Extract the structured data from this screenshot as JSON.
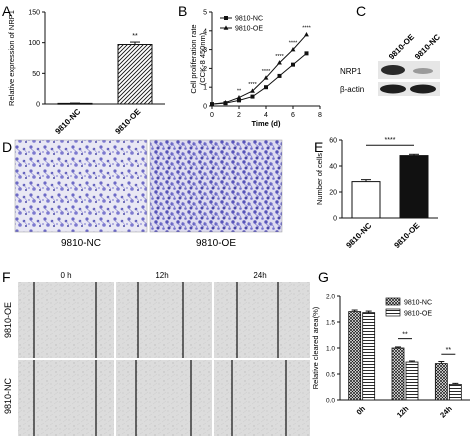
{
  "panel_labels": [
    "A",
    "B",
    "C",
    "D",
    "E",
    "F",
    "G"
  ],
  "chart_data": [
    {
      "panel": "A",
      "type": "bar",
      "ylabel": "Relative expression of NRP1",
      "ylim": [
        0,
        150
      ],
      "yticks": [
        0,
        50,
        100,
        150
      ],
      "categories": [
        "9810-NC",
        "9810-OE"
      ],
      "values": [
        1,
        97
      ],
      "errors": [
        0.5,
        4
      ],
      "significance": [
        {
          "between": [
            0,
            1
          ],
          "label": "**"
        }
      ]
    },
    {
      "panel": "B",
      "type": "line",
      "xlabel": "Time (d)",
      "ylabel": "Cell proliferation rate\n(CCK-8 450nm)",
      "xlim": [
        0,
        8
      ],
      "xticks": [
        0,
        2,
        4,
        6,
        8
      ],
      "ylim": [
        0,
        5
      ],
      "yticks": [
        0,
        1,
        2,
        3,
        4,
        5
      ],
      "legend_position": "top-left",
      "x": [
        0,
        1,
        2,
        3,
        4,
        5,
        6,
        7
      ],
      "series": [
        {
          "name": "9810-NC",
          "values": [
            0.1,
            0.15,
            0.3,
            0.5,
            1.0,
            1.6,
            2.2,
            2.8
          ],
          "marker": "square"
        },
        {
          "name": "9810-OE",
          "values": [
            0.1,
            0.18,
            0.45,
            0.8,
            1.5,
            2.3,
            3.0,
            3.8
          ],
          "marker": "triangle"
        }
      ],
      "annotations": [
        {
          "x": 2,
          "label": "**"
        },
        {
          "x": 3,
          "label": "****"
        },
        {
          "x": 4,
          "label": "****"
        },
        {
          "x": 5,
          "label": "****"
        },
        {
          "x": 6,
          "label": "****"
        },
        {
          "x": 7,
          "label": "****"
        }
      ]
    },
    {
      "panel": "E",
      "type": "bar",
      "ylabel": "Number of cells",
      "ylim": [
        0,
        60
      ],
      "yticks": [
        0,
        20,
        40,
        60
      ],
      "categories": [
        "9810-NC",
        "9810-OE"
      ],
      "values": [
        28,
        48
      ],
      "errors": [
        1.5,
        1
      ],
      "bar_colors": [
        "#ffffff",
        "#111111"
      ],
      "significance": [
        {
          "between": [
            0,
            1
          ],
          "label": "****"
        }
      ]
    },
    {
      "panel": "G",
      "type": "bar",
      "ylabel": "Relative cleared area(%)",
      "ylim": [
        0,
        2.0
      ],
      "yticks": [
        0.0,
        0.5,
        1.0,
        1.5,
        2.0
      ],
      "categories": [
        "0h",
        "12h",
        "24h"
      ],
      "legend_position": "top-right",
      "series": [
        {
          "name": "9810-NC",
          "values": [
            1.7,
            1.0,
            0.7
          ],
          "errors": [
            0.03,
            0.02,
            0.04
          ],
          "pattern": "checker"
        },
        {
          "name": "9810-OE",
          "values": [
            1.68,
            0.73,
            0.3
          ],
          "errors": [
            0.03,
            0.02,
            0.02
          ],
          "pattern": "hstripe"
        }
      ],
      "significance": [
        {
          "category": 1,
          "label": "**"
        },
        {
          "category": 2,
          "label": "**"
        }
      ]
    }
  ],
  "western_blot": {
    "panel": "C",
    "lanes": [
      "9810-OE",
      "9810-NC"
    ],
    "rows": [
      "NRP1",
      "β-actin"
    ]
  },
  "microscopy": {
    "panel": "D",
    "captions": [
      "9810-NC",
      "9810-OE"
    ]
  },
  "wound_healing": {
    "panel": "F",
    "time_labels": [
      "0 h",
      "12h",
      "24h"
    ],
    "row_labels": [
      "9810-OE",
      "9810-NC"
    ]
  }
}
